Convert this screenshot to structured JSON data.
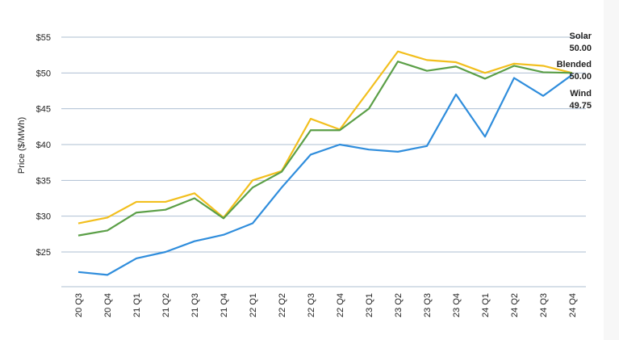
{
  "chart_data": {
    "type": "line",
    "title": "",
    "xlabel": "",
    "ylabel": "Price ($/MWh)",
    "ylim": [
      20.5,
      55
    ],
    "yticks": [
      25,
      30,
      35,
      40,
      45,
      50,
      55
    ],
    "ytick_labels": [
      "$25",
      "$30",
      "$35",
      "$40",
      "$45",
      "$50",
      "$55"
    ],
    "grid": true,
    "categories": [
      "20 Q3",
      "20 Q4",
      "21 Q1",
      "21 Q2",
      "21 Q3",
      "21 Q4",
      "22 Q1",
      "22 Q2",
      "22 Q3",
      "22 Q4",
      "23 Q1",
      "23 Q2",
      "23 Q3",
      "23 Q4",
      "24 Q1",
      "24 Q2",
      "24 Q3",
      "24 Q4"
    ],
    "series": [
      {
        "name": "Solar",
        "color": "#f2bf1d",
        "values": [
          29.0,
          29.8,
          32.0,
          32.0,
          33.2,
          29.8,
          35.0,
          36.3,
          43.6,
          42.1,
          47.5,
          53.0,
          51.8,
          51.5,
          50.0,
          51.3,
          51.0,
          50.0
        ]
      },
      {
        "name": "Blended",
        "color": "#5b9f47",
        "values": [
          27.3,
          28.0,
          30.5,
          30.9,
          32.5,
          29.7,
          34.0,
          36.2,
          42.0,
          42.0,
          45.0,
          51.6,
          50.3,
          50.9,
          49.2,
          51.0,
          50.1,
          50.0
        ]
      },
      {
        "name": "Wind",
        "color": "#2f8ddc",
        "values": [
          22.2,
          21.8,
          24.1,
          25.0,
          26.5,
          27.4,
          29.0,
          34.0,
          38.6,
          40.0,
          39.3,
          39.0,
          39.8,
          47.0,
          41.1,
          49.3,
          46.8,
          49.75
        ]
      }
    ],
    "end_labels": [
      {
        "name": "Solar",
        "value": "50.00"
      },
      {
        "name": "Blended",
        "value": "50.00"
      },
      {
        "name": "Wind",
        "value": "49.75"
      }
    ]
  }
}
